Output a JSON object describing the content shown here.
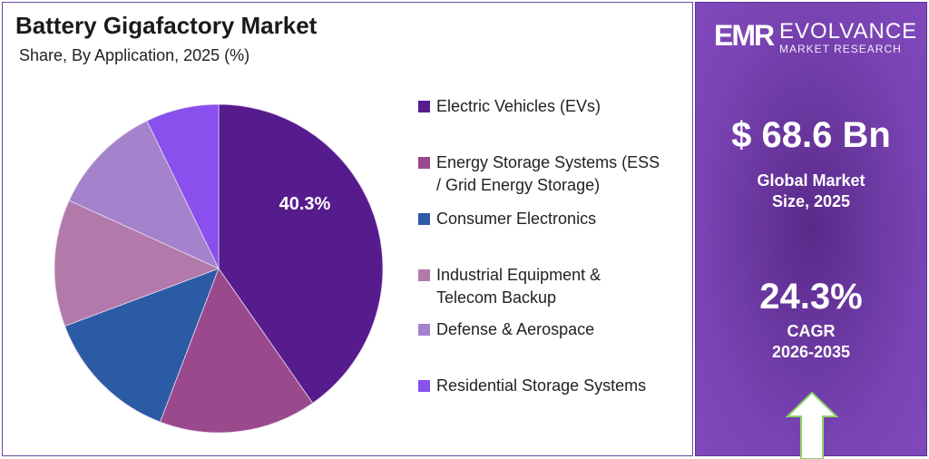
{
  "chart_data": {
    "type": "pie",
    "title": "Battery Gigafactory Market",
    "subtitle": "Share, By Application, 2025 (%)",
    "categories": [
      "Electric Vehicles (EVs)",
      "Energy Storage Systems (ESS / Grid Energy Storage)",
      "Consumer Electronics",
      "Industrial Equipment & Telecom Backup",
      "Defense & Aerospace",
      "Residential Storage Systems"
    ],
    "legend_lines": [
      [
        "Electric Vehicles (EVs)"
      ],
      [
        "Energy Storage Systems (ESS",
        "/ Grid Energy Storage)"
      ],
      [
        "Consumer Electronics"
      ],
      [
        "Industrial Equipment &",
        "Telecom Backup"
      ],
      [
        "Defense & Aerospace"
      ],
      [
        "Residential Storage Systems"
      ]
    ],
    "values": [
      40.3,
      15.5,
      13.5,
      12.5,
      11.0,
      7.2
    ],
    "colors": [
      "#561c8e",
      "#9a4a8c",
      "#2c5ba6",
      "#b27aaa",
      "#a582cc",
      "#8a50ee"
    ],
    "data_labels": [
      "40.3%",
      "",
      "",
      "",
      "",
      ""
    ],
    "legend_placement": "right"
  },
  "sidebar": {
    "brand_mark": "EMR",
    "brand_name": "EVOLVANCE",
    "brand_sub": "MARKET RESEARCH",
    "market_size": "$ 68.6 Bn",
    "market_size_label_1": "Global Market",
    "market_size_label_2": "Size, 2025",
    "cagr": "24.3%",
    "cagr_label": "CAGR",
    "cagr_period": "2026-2035"
  }
}
